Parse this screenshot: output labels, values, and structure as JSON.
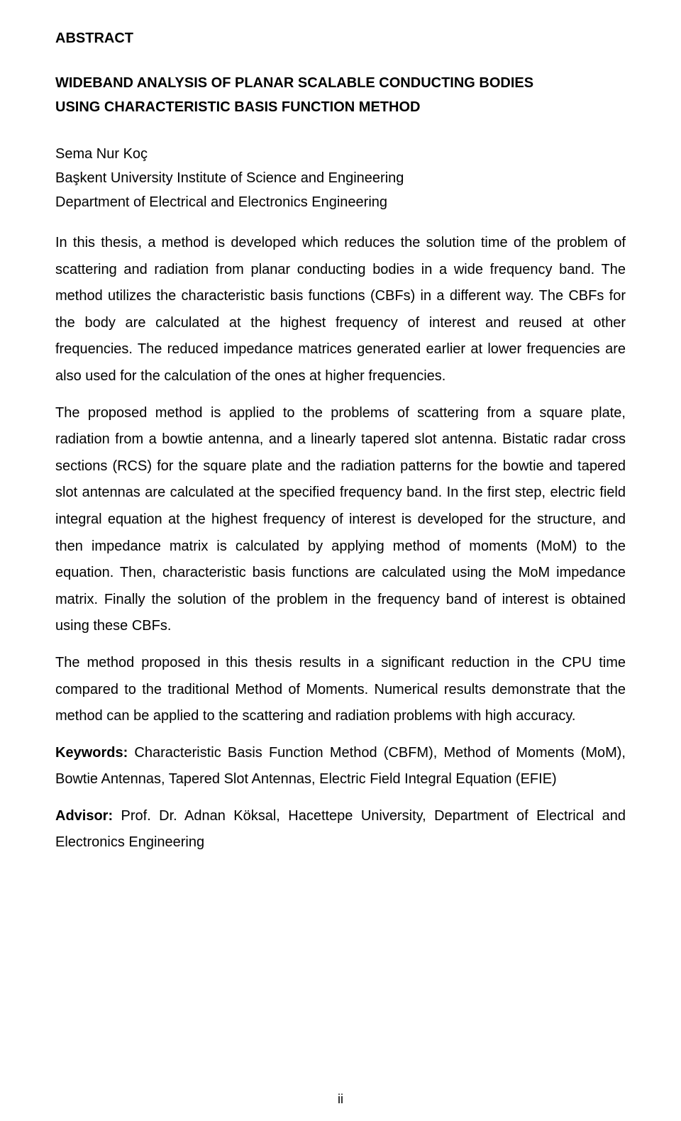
{
  "heading": "ABSTRACT",
  "title_line1": "WIDEBAND ANALYSIS OF PLANAR SCALABLE CONDUCTING BODIES",
  "title_line2": "USING CHARACTERISTIC BASIS FUNCTION METHOD",
  "author": "Sema Nur Koç",
  "affiliation1": "Başkent University Institute of Science and Engineering",
  "affiliation2": "Department of Electrical and Electronics Engineering",
  "para1": "In this thesis, a method is developed which reduces the solution time of the problem of scattering and radiation from planar conducting bodies in a wide frequency band. The method utilizes the characteristic basis functions (CBFs) in a different way. The CBFs for the body are calculated at the highest frequency of interest and reused at other frequencies. The reduced impedance matrices generated earlier at lower frequencies are also used for the calculation of the ones at higher frequencies.",
  "para2": "The proposed method is applied to the problems of scattering from a square plate, radiation from a bowtie antenna, and a linearly tapered slot antenna. Bistatic radar cross sections (RCS) for the square plate and the radiation patterns for the bowtie and tapered slot antennas are calculated at the specified frequency band. In the first step, electric field integral equation at the highest frequency of interest is developed for the structure, and then impedance matrix is calculated by applying method of moments (MoM) to the equation. Then, characteristic basis functions are calculated using the MoM impedance matrix. Finally the solution of the problem in the frequency band of interest is obtained using these CBFs.",
  "para3": "The method proposed in this thesis results in a significant reduction in the CPU time compared to the traditional Method of Moments. Numerical results demonstrate that the method can be applied to the scattering and radiation problems with high accuracy.",
  "keywords_label": "Keywords:",
  "keywords_text": " Characteristic Basis Function Method (CBFM), Method of Moments (MoM), Bowtie Antennas, Tapered Slot Antennas, Electric Field Integral Equation (EFIE)",
  "advisor_label": "Advisor:",
  "advisor_text": " Prof. Dr. Adnan Köksal, Hacettepe University, Department of Electrical and Electronics Engineering",
  "page_number": "ii"
}
